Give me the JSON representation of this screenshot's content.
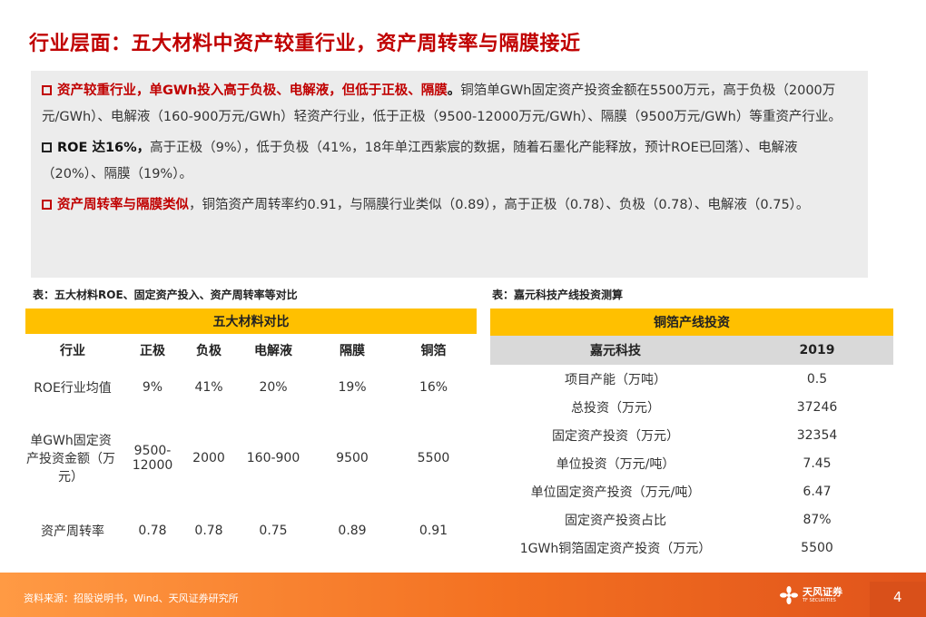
{
  "title": "行业层面：五大材料中资产较重行业，资产周转率与隔膜接近",
  "summary": {
    "b1_hl": "资产较重行业，单GWh投入高于负极、电解液，但低于正极、隔膜",
    "b1_dot": "。",
    "b1_text": "铜箔单GWh固定资产投资金额在5500万元，高于负极（2000万元/GWh）、电解液（160-900万元/GWh）轻资产行业，低于正极（9500-12000万元/GWh）、隔膜（9500万元/GWh）等重资产行业。",
    "b2_hl": "ROE 达16%，",
    "b2_text": "高于正极（9%），低于负极（41%，18年单江西紫宸的数据，随着石墨化产能释放，预计ROE已回落）、电解液（20%）、隔膜（19%）。",
    "b3_hl": "资产周转率与隔膜类似",
    "b3_text": "，铜箔资产周转率约0.91，与隔膜行业类似（0.89），高于正极（0.78）、负极（0.78）、电解液（0.75）。"
  },
  "table1": {
    "caption": "表：五大材料ROE、固定资产投入、资产周转率等对比",
    "band": "五大材料对比",
    "headers": [
      "行业",
      "正极",
      "负极",
      "电解液",
      "隔膜",
      "铜箔"
    ],
    "rows": [
      [
        "ROE行业均值",
        "9%",
        "41%",
        "20%",
        "19%",
        "16%"
      ],
      [
        "单GWh固定资产投资金额（万元）",
        "9500-12000",
        "2000",
        "160-900",
        "9500",
        "5500"
      ],
      [
        "资产周转率",
        "0.78",
        "0.78",
        "0.75",
        "0.89",
        "0.91"
      ]
    ]
  },
  "table2": {
    "caption": "表：嘉元科技产线投资测算",
    "band": "铜箔产线投资",
    "headers": [
      "嘉元科技",
      "2019"
    ],
    "rows": [
      [
        "项目产能（万吨）",
        "0.5"
      ],
      [
        "总投资（万元）",
        "37246"
      ],
      [
        "固定资产投资（万元）",
        "32354"
      ],
      [
        "单位投资（万元/吨）",
        "7.45"
      ],
      [
        "单位固定资产投资（万元/吨）",
        "6.47"
      ],
      [
        "固定资产投资占比",
        "87%"
      ],
      [
        "1GWh铜箔固定资产投资（万元）",
        "5500"
      ]
    ]
  },
  "footer": {
    "source": "资料来源：招股说明书，Wind、天风证券研究所",
    "logo_name": "天风证券",
    "logo_sub": "TF SECURITIES",
    "page": "4"
  },
  "colors": {
    "accent": "#c00000",
    "band": "#ffc000",
    "footer": "#f37021"
  }
}
